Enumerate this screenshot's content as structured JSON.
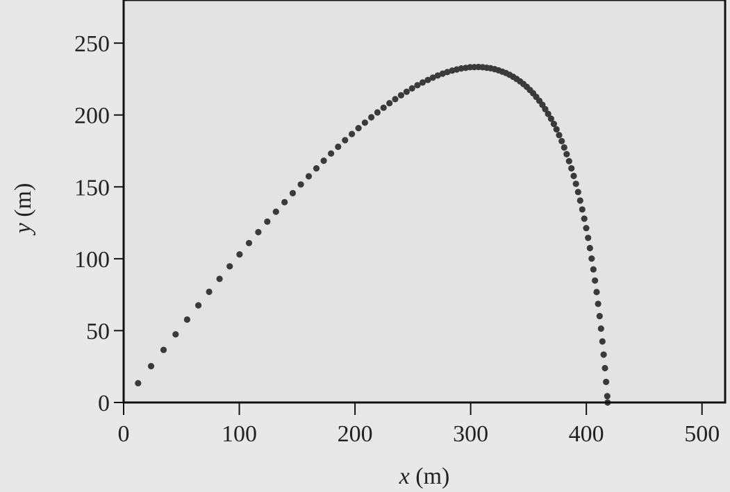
{
  "chart_data": {
    "type": "scatter",
    "title": "",
    "xlabel": {
      "var": "x",
      "unit": " (m)"
    },
    "ylabel": {
      "var": "y",
      "unit": " (m)"
    },
    "xlim": [
      0,
      520
    ],
    "ylim": [
      0,
      280
    ],
    "xticks": [
      0,
      100,
      200,
      300,
      400,
      500
    ],
    "yticks": [
      0,
      50,
      100,
      150,
      200,
      250
    ],
    "grid": false,
    "legend": "none",
    "colors": {
      "background": "#e8e8e8",
      "plot_bg": "#e3e3e3",
      "marker": "#3a3a3a",
      "axes": "#111111"
    },
    "series": [
      {
        "points": [
          [
            12.5,
            13.4
          ],
          [
            23.7,
            25.3
          ],
          [
            34.5,
            36.6
          ],
          [
            44.9,
            47.4
          ],
          [
            54.9,
            57.7
          ],
          [
            64.6,
            67.6
          ],
          [
            73.9,
            77.0
          ],
          [
            82.9,
            86.0
          ],
          [
            91.7,
            94.7
          ],
          [
            100.2,
            103.0
          ],
          [
            108.4,
            110.9
          ],
          [
            116.4,
            118.5
          ],
          [
            124.2,
            125.8
          ],
          [
            131.7,
            132.7
          ],
          [
            139.1,
            139.3
          ],
          [
            146.2,
            145.6
          ],
          [
            153.2,
            151.7
          ],
          [
            160.0,
            157.4
          ],
          [
            166.6,
            162.9
          ],
          [
            173.0,
            168.2
          ],
          [
            179.3,
            173.2
          ],
          [
            185.4,
            177.9
          ],
          [
            191.4,
            182.5
          ],
          [
            197.3,
            186.8
          ],
          [
            203.0,
            190.9
          ],
          [
            208.6,
            194.7
          ],
          [
            214.1,
            198.4
          ],
          [
            219.4,
            201.8
          ],
          [
            224.7,
            205.1
          ],
          [
            229.8,
            208.2
          ],
          [
            234.8,
            211.0
          ],
          [
            239.8,
            213.7
          ],
          [
            244.6,
            216.2
          ],
          [
            249.3,
            218.5
          ],
          [
            254.0,
            220.7
          ],
          [
            258.5,
            222.6
          ],
          [
            263.0,
            224.4
          ],
          [
            267.3,
            226.0
          ],
          [
            271.6,
            227.5
          ],
          [
            275.8,
            228.8
          ],
          [
            279.9,
            229.9
          ],
          [
            284.0,
            230.9
          ],
          [
            288.0,
            231.7
          ],
          [
            291.9,
            232.4
          ],
          [
            295.7,
            232.8
          ],
          [
            299.5,
            233.2
          ],
          [
            303.2,
            233.3
          ],
          [
            306.8,
            233.4
          ],
          [
            310.4,
            233.2
          ],
          [
            313.9,
            232.9
          ],
          [
            317.3,
            232.5
          ],
          [
            320.7,
            231.9
          ],
          [
            324.0,
            231.1
          ],
          [
            327.3,
            230.2
          ],
          [
            330.5,
            229.2
          ],
          [
            333.6,
            228.0
          ],
          [
            336.7,
            226.6
          ],
          [
            339.7,
            225.1
          ],
          [
            342.7,
            223.4
          ],
          [
            345.6,
            221.6
          ],
          [
            348.5,
            219.6
          ],
          [
            351.3,
            217.4
          ],
          [
            354.0,
            215.1
          ],
          [
            356.7,
            212.6
          ],
          [
            359.4,
            209.9
          ],
          [
            362.0,
            207.1
          ],
          [
            364.5,
            204.0
          ],
          [
            367.0,
            200.8
          ],
          [
            369.5,
            197.4
          ],
          [
            371.9,
            193.8
          ],
          [
            374.2,
            190.0
          ],
          [
            376.5,
            186.0
          ],
          [
            378.7,
            181.8
          ],
          [
            380.9,
            177.4
          ],
          [
            383.0,
            172.8
          ],
          [
            385.1,
            167.9
          ],
          [
            387.1,
            162.9
          ],
          [
            389.1,
            157.6
          ],
          [
            391.0,
            152.1
          ],
          [
            392.9,
            146.4
          ],
          [
            394.7,
            140.5
          ],
          [
            396.5,
            134.3
          ],
          [
            398.2,
            127.9
          ],
          [
            399.9,
            121.3
          ],
          [
            401.5,
            114.5
          ],
          [
            403.1,
            107.4
          ],
          [
            404.6,
            100.1
          ],
          [
            406.1,
            92.6
          ],
          [
            407.5,
            84.8
          ],
          [
            408.9,
            76.8
          ],
          [
            410.2,
            68.6
          ],
          [
            411.5,
            60.1
          ],
          [
            412.7,
            51.4
          ],
          [
            413.9,
            42.5
          ],
          [
            415.0,
            33.3
          ],
          [
            416.1,
            23.9
          ],
          [
            417.1,
            14.3
          ],
          [
            418.1,
            4.4
          ],
          [
            418.4,
            0.0
          ]
        ]
      }
    ]
  }
}
